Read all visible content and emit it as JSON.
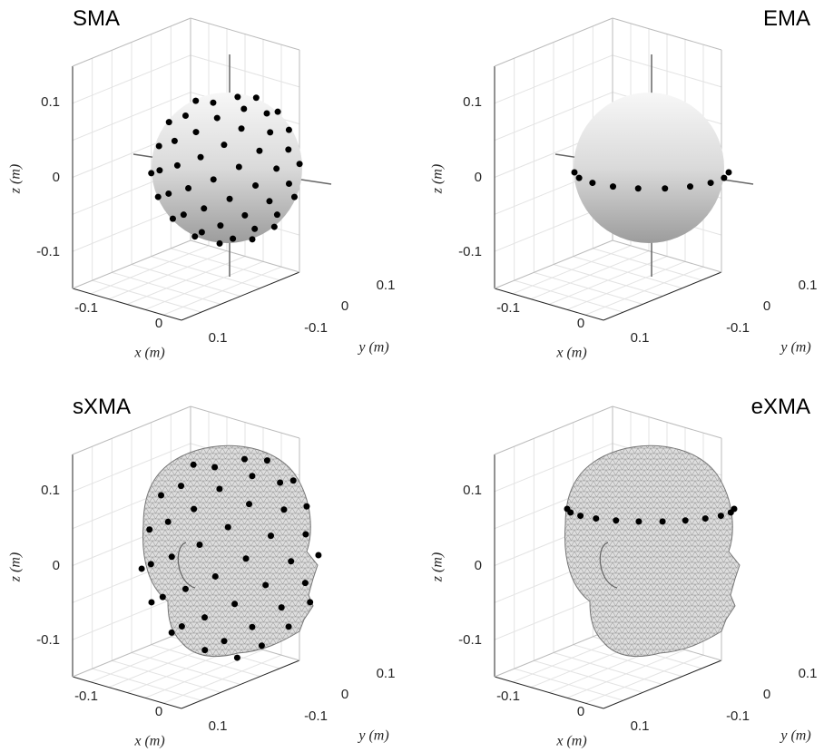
{
  "panels": [
    {
      "title": "SMA",
      "x_label": "x (m)",
      "y_label": "y (m)",
      "z_label": "z (m)",
      "x_ticks": [
        "-0.1",
        "0",
        "0.1"
      ],
      "y_ticks": [
        "-0.1",
        "0",
        "0.1"
      ],
      "z_ticks": [
        "0.1",
        "0",
        "-0.1"
      ]
    },
    {
      "title": "EMA",
      "x_label": "x (m)",
      "y_label": "y (m)",
      "z_label": "z (m)",
      "x_ticks": [
        "-0.1",
        "0",
        "0.1"
      ],
      "y_ticks": [
        "-0.1",
        "0",
        "0.1"
      ],
      "z_ticks": [
        "0.1",
        "0",
        "-0.1"
      ]
    },
    {
      "title": "sXMA",
      "x_label": "x (m)",
      "y_label": "y (m)",
      "z_label": "z (m)",
      "x_ticks": [
        "-0.1",
        "0",
        "0.1"
      ],
      "y_ticks": [
        "-0.1",
        "0",
        "0.1"
      ],
      "z_ticks": [
        "0.1",
        "0",
        "-0.1"
      ]
    },
    {
      "title": "eXMA",
      "x_label": "x (m)",
      "y_label": "y (m)",
      "z_label": "z (m)",
      "x_ticks": [
        "-0.1",
        "0",
        "0.1"
      ],
      "y_ticks": [
        "-0.1",
        "0",
        "0.1"
      ],
      "z_ticks": [
        "0.1",
        "0",
        "-0.1"
      ]
    }
  ]
}
